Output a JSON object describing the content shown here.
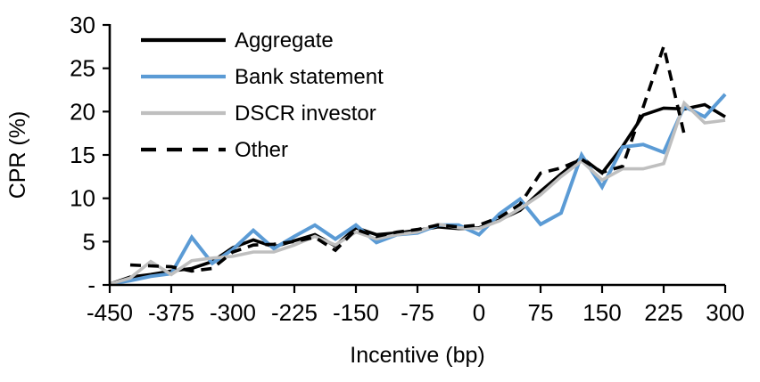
{
  "chart_data": {
    "type": "line",
    "title": "",
    "xlabel": "Incentive (bp)",
    "ylabel": "CPR (%)",
    "xlim": [
      -450,
      300
    ],
    "ylim": [
      0,
      30
    ],
    "grid": false,
    "legend_position": "inside-top-left",
    "xticks": [
      -450,
      -375,
      -300,
      -225,
      -150,
      -75,
      0,
      75,
      150,
      225,
      300
    ],
    "ytick_values": [
      0,
      5,
      10,
      15,
      20,
      25,
      30
    ],
    "ytick_labels": [
      "-",
      "5",
      "10",
      "15",
      "20",
      "25",
      "30"
    ],
    "x": [
      -450,
      -425,
      -400,
      -375,
      -350,
      -325,
      -300,
      -275,
      -250,
      -225,
      -200,
      -175,
      -150,
      -125,
      -100,
      -75,
      -50,
      -25,
      0,
      25,
      50,
      75,
      100,
      125,
      150,
      175,
      200,
      225,
      250,
      275,
      300
    ],
    "series": [
      {
        "name": "Aggregate",
        "color": "#000000",
        "dash": null,
        "values": [
          0.1,
          0.9,
          1.2,
          1.6,
          1.9,
          2.7,
          4.3,
          5.2,
          4.4,
          5.1,
          5.8,
          4.5,
          6.6,
          5.8,
          6.0,
          6.3,
          6.7,
          6.5,
          6.6,
          7.5,
          8.6,
          10.8,
          12.8,
          14.7,
          12.9,
          16.0,
          19.6,
          20.4,
          20.3,
          20.8,
          19.4
        ]
      },
      {
        "name": "Bank statement",
        "color": "#5B9BD5",
        "dash": null,
        "values": [
          0.1,
          0.5,
          1.0,
          1.3,
          5.5,
          2.5,
          4.1,
          6.3,
          4.2,
          5.6,
          6.9,
          5.3,
          6.9,
          4.9,
          5.8,
          6.0,
          6.9,
          6.9,
          5.8,
          8.2,
          9.9,
          7.0,
          8.3,
          15.0,
          11.3,
          15.9,
          16.2,
          15.3,
          20.6,
          19.4,
          22.0
        ]
      },
      {
        "name": "DSCR investor",
        "color": "#BFBFBF",
        "dash": null,
        "values": [
          0.1,
          0.8,
          2.7,
          1.2,
          2.8,
          3.1,
          3.3,
          3.8,
          3.8,
          4.6,
          5.6,
          4.6,
          6.1,
          5.3,
          5.8,
          6.1,
          7.0,
          6.6,
          6.5,
          7.4,
          8.8,
          10.4,
          12.5,
          14.3,
          12.1,
          13.4,
          13.4,
          14.0,
          21.0,
          18.7,
          19.0
        ]
      },
      {
        "name": "Other",
        "color": "#000000",
        "dash": [
          12,
          8
        ],
        "values": [
          null,
          2.3,
          2.2,
          2.1,
          1.6,
          1.9,
          3.8,
          4.6,
          4.7,
          5.0,
          5.5,
          4.0,
          6.4,
          5.6,
          6.1,
          6.4,
          6.9,
          6.7,
          6.9,
          7.8,
          9.3,
          12.9,
          13.5,
          14.5,
          13.0,
          13.7,
          20.5,
          27.5,
          17.4,
          null,
          null
        ]
      }
    ]
  }
}
